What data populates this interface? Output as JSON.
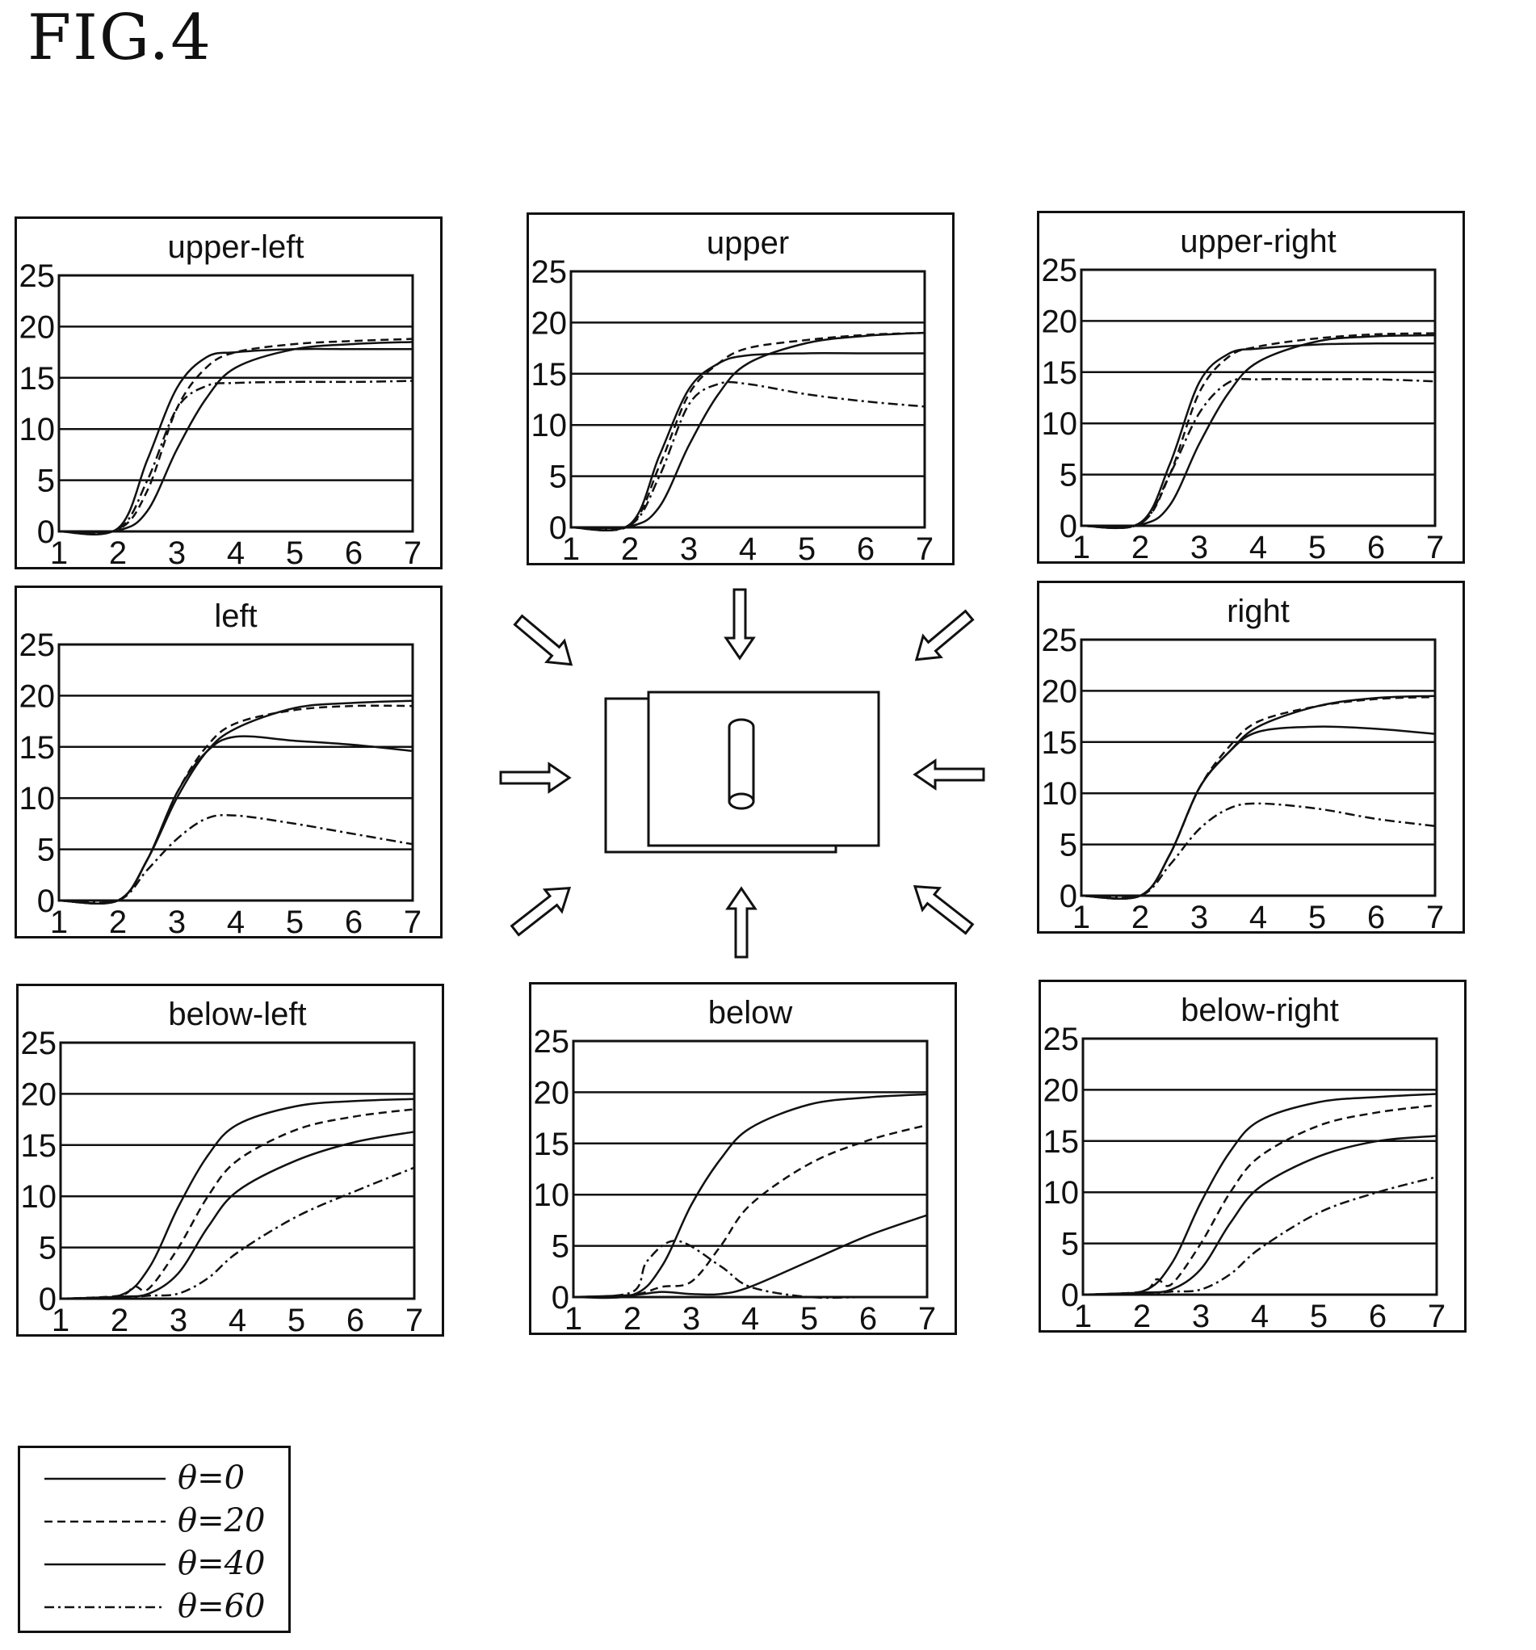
{
  "figure_title": "FIG.4",
  "legend": {
    "items": [
      {
        "label": "θ=0",
        "dash": "solid"
      },
      {
        "label": "θ=20",
        "dash": "dashed"
      },
      {
        "label": "θ=40",
        "dash": "solid"
      },
      {
        "label": "θ=60",
        "dash": "dashdot"
      }
    ]
  },
  "chart_data": [
    {
      "type": "line",
      "title": "upper-left",
      "xlim": [
        1,
        7
      ],
      "ylim": [
        0,
        25
      ],
      "xticks": [
        1,
        2,
        3,
        4,
        5,
        6,
        7
      ],
      "yticks": [
        0,
        5,
        10,
        15,
        20,
        25
      ],
      "grid": "horizontal",
      "series": [
        {
          "label": "θ=0",
          "x": [
            1,
            2,
            2.5,
            3,
            3.5,
            4,
            5,
            6,
            7
          ],
          "y": [
            0,
            0.3,
            7,
            14,
            17,
            17.5,
            17.8,
            17.8,
            17.8
          ]
        },
        {
          "label": "θ=20",
          "x": [
            1,
            2,
            2.5,
            3,
            3.5,
            4,
            5,
            6,
            7
          ],
          "y": [
            0,
            0.2,
            4,
            12,
            16,
            17.5,
            18.3,
            18.6,
            18.8
          ]
        },
        {
          "label": "θ=40",
          "x": [
            1,
            2,
            2.5,
            3,
            3.5,
            4,
            5,
            6,
            7
          ],
          "y": [
            0,
            0.1,
            2,
            8,
            13,
            16,
            17.8,
            18.3,
            18.5
          ]
        },
        {
          "label": "θ=60",
          "x": [
            1,
            2,
            2.5,
            3,
            3.5,
            4,
            5,
            6,
            7
          ],
          "y": [
            0,
            0.2,
            5,
            12,
            14.2,
            14.5,
            14.6,
            14.6,
            14.7
          ]
        }
      ]
    },
    {
      "type": "line",
      "title": "upper",
      "xlim": [
        1,
        7
      ],
      "ylim": [
        0,
        25
      ],
      "xticks": [
        1,
        2,
        3,
        4,
        5,
        6,
        7
      ],
      "yticks": [
        0,
        5,
        10,
        15,
        20,
        25
      ],
      "grid": "horizontal",
      "series": [
        {
          "label": "θ=0",
          "x": [
            1,
            2,
            2.5,
            3,
            3.5,
            4,
            5,
            6,
            7
          ],
          "y": [
            0,
            0.3,
            7,
            13.5,
            16,
            16.8,
            17,
            17,
            17
          ]
        },
        {
          "label": "θ=20",
          "x": [
            1,
            2,
            2.5,
            3,
            3.5,
            4,
            5,
            6,
            7
          ],
          "y": [
            0,
            0.2,
            6,
            13,
            16,
            17.5,
            18.3,
            18.8,
            19
          ]
        },
        {
          "label": "θ=40",
          "x": [
            1,
            2,
            2.5,
            3,
            3.5,
            4,
            5,
            6,
            7
          ],
          "y": [
            0,
            0.1,
            2,
            8,
            13,
            16,
            18,
            18.7,
            19
          ]
        },
        {
          "label": "θ=60",
          "x": [
            1,
            2,
            2.5,
            3,
            3.5,
            4,
            5,
            6,
            7
          ],
          "y": [
            0,
            0.2,
            5,
            12,
            14,
            14,
            13,
            12.3,
            11.8
          ]
        }
      ]
    },
    {
      "type": "line",
      "title": "upper-right",
      "xlim": [
        1,
        7
      ],
      "ylim": [
        0,
        25
      ],
      "xticks": [
        1,
        2,
        3,
        4,
        5,
        6,
        7
      ],
      "yticks": [
        0,
        5,
        10,
        15,
        20,
        25
      ],
      "grid": "horizontal",
      "series": [
        {
          "label": "θ=0",
          "x": [
            1,
            2,
            2.5,
            3,
            3.5,
            4,
            5,
            6,
            7
          ],
          "y": [
            0,
            0.3,
            6,
            14,
            16.8,
            17.3,
            17.7,
            17.8,
            17.8
          ]
        },
        {
          "label": "θ=20",
          "x": [
            1,
            2,
            2.5,
            3,
            3.5,
            4,
            5,
            6,
            7
          ],
          "y": [
            0,
            0.2,
            5,
            13,
            16.5,
            17.5,
            18.3,
            18.7,
            18.8
          ]
        },
        {
          "label": "θ=40",
          "x": [
            1,
            2,
            2.5,
            3,
            3.5,
            4,
            5,
            6,
            7
          ],
          "y": [
            0,
            0.1,
            2,
            8,
            13,
            16,
            18,
            18.5,
            18.6
          ]
        },
        {
          "label": "θ=60",
          "x": [
            1,
            2,
            2.5,
            3,
            3.5,
            4,
            5,
            6,
            7
          ],
          "y": [
            0,
            0.2,
            5,
            11,
            14,
            14.3,
            14.3,
            14.3,
            14.1
          ]
        }
      ]
    },
    {
      "type": "line",
      "title": "left",
      "xlim": [
        1,
        7
      ],
      "ylim": [
        0,
        25
      ],
      "xticks": [
        1,
        2,
        3,
        4,
        5,
        6,
        7
      ],
      "yticks": [
        0,
        5,
        10,
        15,
        20,
        25
      ],
      "grid": "horizontal",
      "series": [
        {
          "label": "θ=0",
          "x": [
            1,
            2,
            2.5,
            3,
            3.5,
            4,
            5,
            6,
            7
          ],
          "y": [
            0,
            0,
            4,
            10.5,
            14.5,
            16,
            15.6,
            15.2,
            14.6
          ]
        },
        {
          "label": "θ=20",
          "x": [
            1,
            2,
            2.5,
            3,
            3.5,
            4,
            5,
            6,
            7
          ],
          "y": [
            0,
            0,
            4,
            10.5,
            15,
            17.3,
            18.6,
            19,
            19
          ]
        },
        {
          "label": "θ=40",
          "x": [
            1,
            2,
            2.5,
            3,
            3.5,
            4,
            5,
            6,
            7
          ],
          "y": [
            0,
            0,
            4,
            10,
            14.5,
            16.8,
            18.8,
            19.3,
            19.5
          ]
        },
        {
          "label": "θ=60",
          "x": [
            1,
            2,
            2.5,
            3,
            3.5,
            4,
            5,
            6,
            7
          ],
          "y": [
            0,
            0,
            3,
            6,
            8,
            8.3,
            7.5,
            6.5,
            5.5
          ]
        }
      ]
    },
    {
      "type": "line",
      "title": "right",
      "xlim": [
        1,
        7
      ],
      "ylim": [
        0,
        25
      ],
      "xticks": [
        1,
        2,
        3,
        4,
        5,
        6,
        7
      ],
      "yticks": [
        0,
        5,
        10,
        15,
        20,
        25
      ],
      "grid": "horizontal",
      "series": [
        {
          "label": "θ=0",
          "x": [
            1,
            2,
            2.5,
            3,
            3.5,
            4,
            5,
            6,
            7
          ],
          "y": [
            0,
            0,
            4,
            10.5,
            14,
            16,
            16.5,
            16.3,
            15.8
          ]
        },
        {
          "label": "θ=20",
          "x": [
            1,
            2,
            2.5,
            3,
            3.5,
            4,
            5,
            6,
            7
          ],
          "y": [
            0,
            0,
            4,
            10.5,
            14.5,
            17,
            18.5,
            19.2,
            19.4
          ]
        },
        {
          "label": "θ=40",
          "x": [
            1,
            2,
            2.5,
            3,
            3.5,
            4,
            5,
            6,
            7
          ],
          "y": [
            0,
            0,
            4,
            10.5,
            14,
            16.5,
            18.5,
            19.3,
            19.5
          ]
        },
        {
          "label": "θ=60",
          "x": [
            1,
            2,
            2.5,
            3,
            3.5,
            4,
            5,
            6,
            7
          ],
          "y": [
            0,
            0,
            3,
            6.5,
            8.5,
            9,
            8.5,
            7.5,
            6.8
          ]
        }
      ]
    },
    {
      "type": "line",
      "title": "below-left",
      "xlim": [
        1,
        7
      ],
      "ylim": [
        0,
        25
      ],
      "xticks": [
        1,
        2,
        3,
        4,
        5,
        6,
        7
      ],
      "yticks": [
        0,
        5,
        10,
        15,
        20,
        25
      ],
      "grid": "horizontal",
      "series": [
        {
          "label": "θ=0",
          "x": [
            1,
            2,
            2.5,
            3,
            3.5,
            4,
            5,
            6,
            7
          ],
          "y": [
            0,
            0.3,
            3,
            9,
            14,
            17,
            18.8,
            19.3,
            19.5
          ]
        },
        {
          "label": "θ=20",
          "x": [
            1,
            2,
            2.25,
            2.5,
            3,
            3.5,
            4,
            5,
            6,
            7
          ],
          "y": [
            0,
            0.3,
            1.2,
            1,
            5,
            10,
            13.5,
            16.5,
            17.8,
            18.5
          ]
        },
        {
          "label": "θ=40",
          "x": [
            1,
            2,
            2.5,
            3,
            3.5,
            4,
            5,
            6,
            7
          ],
          "y": [
            0,
            0.2,
            0.5,
            2.5,
            7,
            10.5,
            13.5,
            15.3,
            16.3
          ]
        },
        {
          "label": "θ=60",
          "x": [
            1,
            2,
            2.5,
            3,
            3.5,
            4,
            5,
            6,
            7
          ],
          "y": [
            0,
            0.1,
            0.3,
            0.5,
            2,
            4.5,
            8,
            10.5,
            12.8
          ]
        }
      ]
    },
    {
      "type": "line",
      "title": "below",
      "xlim": [
        1,
        7
      ],
      "ylim": [
        0,
        25
      ],
      "xticks": [
        1,
        2,
        3,
        4,
        5,
        6,
        7
      ],
      "yticks": [
        0,
        5,
        10,
        15,
        20,
        25
      ],
      "grid": "horizontal",
      "series": [
        {
          "label": "θ=0",
          "x": [
            1,
            2,
            2.5,
            3,
            3.5,
            4,
            5,
            6,
            7
          ],
          "y": [
            0,
            0.2,
            3,
            9,
            13.5,
            16.5,
            18.8,
            19.5,
            19.8
          ]
        },
        {
          "label": "θ=20",
          "x": [
            1,
            2,
            2.5,
            3,
            3.5,
            4,
            5,
            6,
            7
          ],
          "y": [
            0,
            0.2,
            1,
            1.5,
            5,
            9,
            13,
            15.3,
            16.8
          ]
        },
        {
          "label": "θ=40",
          "x": [
            1,
            2,
            2.5,
            3,
            3.5,
            4,
            5,
            6,
            7
          ],
          "y": [
            0,
            0.2,
            0.5,
            0.3,
            0.3,
            1,
            3.5,
            6,
            8
          ]
        },
        {
          "label": "θ=60",
          "x": [
            1,
            2,
            2.25,
            2.75,
            3.5,
            4,
            5,
            6,
            7
          ],
          "y": [
            0,
            0.5,
            3.5,
            5.5,
            3,
            1,
            0,
            0,
            0
          ]
        }
      ]
    },
    {
      "type": "line",
      "title": "below-right",
      "xlim": [
        1,
        7
      ],
      "ylim": [
        0,
        25
      ],
      "xticks": [
        1,
        2,
        3,
        4,
        5,
        6,
        7
      ],
      "yticks": [
        0,
        5,
        10,
        15,
        20,
        25
      ],
      "grid": "horizontal",
      "series": [
        {
          "label": "θ=0",
          "x": [
            1,
            2,
            2.5,
            3,
            3.5,
            4,
            5,
            6,
            7
          ],
          "y": [
            0,
            0.3,
            3,
            9,
            14,
            17,
            18.8,
            19.3,
            19.6
          ]
        },
        {
          "label": "θ=20",
          "x": [
            1,
            2,
            2.25,
            2.5,
            3,
            3.5,
            4,
            5,
            6,
            7
          ],
          "y": [
            0,
            0.3,
            1.5,
            1,
            5,
            10,
            13.5,
            16.5,
            17.8,
            18.5
          ]
        },
        {
          "label": "θ=40",
          "x": [
            1,
            2,
            2.5,
            3,
            3.5,
            4,
            5,
            6,
            7
          ],
          "y": [
            0,
            0.2,
            0.5,
            2.5,
            7,
            10.5,
            13.5,
            15,
            15.5
          ]
        },
        {
          "label": "θ=60",
          "x": [
            1,
            2,
            2.5,
            3,
            3.5,
            4,
            5,
            6,
            7
          ],
          "y": [
            0,
            0.1,
            0.3,
            0.5,
            2,
            4.5,
            8,
            10,
            11.5
          ]
        }
      ]
    }
  ]
}
